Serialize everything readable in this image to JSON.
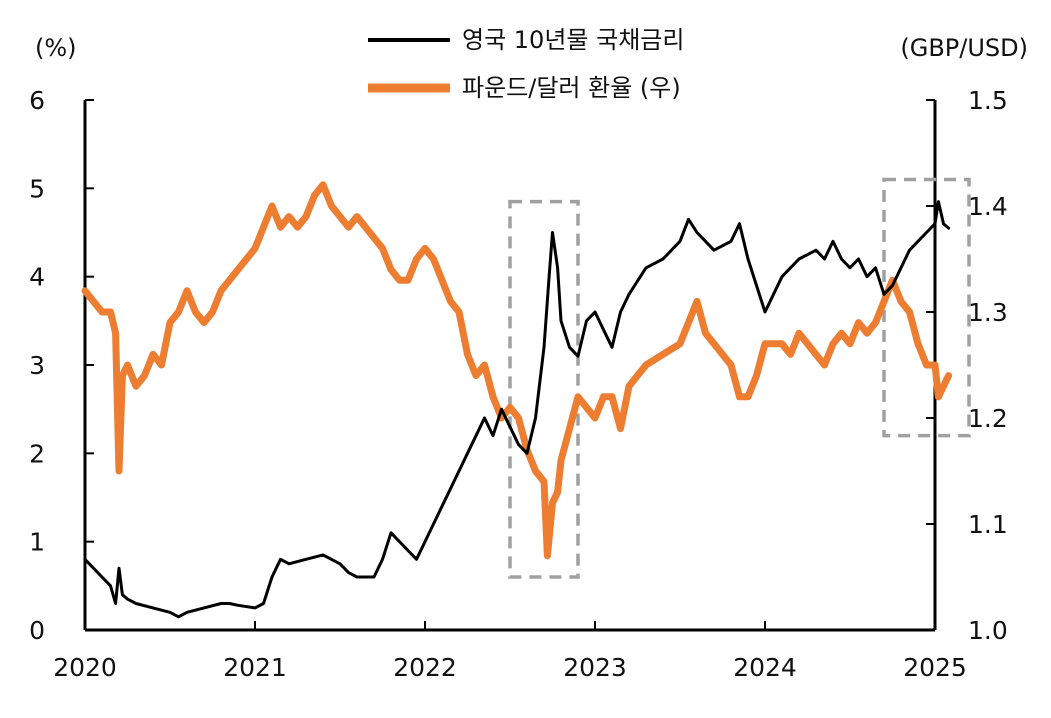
{
  "chart_data": {
    "type": "line",
    "left_unit": "(%)",
    "right_unit": "(GBP/USD)",
    "x_tick_labels": [
      "2020",
      "2021",
      "2022",
      "2023",
      "2024",
      "2025"
    ],
    "y_left": {
      "range": [
        0,
        6
      ],
      "tick_labels": [
        "0",
        "1",
        "2",
        "3",
        "4",
        "5",
        "6"
      ]
    },
    "y_right": {
      "range": [
        1.0,
        1.5
      ],
      "tick_labels": [
        "1.0",
        "1.1",
        "1.2",
        "1.3",
        "1.4",
        "1.5"
      ]
    },
    "x_range": [
      2020.0,
      2025.0
    ],
    "highlight_boxes": [
      {
        "x_range": [
          2022.5,
          2022.9
        ],
        "y_left_range": [
          0.6,
          4.85
        ]
      },
      {
        "x_range": [
          2024.7,
          2025.2
        ],
        "y_left_range": [
          2.2,
          5.1
        ]
      }
    ],
    "series": [
      {
        "name": "영국 10년물 국채금리",
        "axis": "left",
        "color": "#000000",
        "x": [
          2020.0,
          2020.05,
          2020.1,
          2020.15,
          2020.18,
          2020.2,
          2020.22,
          2020.25,
          2020.3,
          2020.4,
          2020.5,
          2020.55,
          2020.6,
          2020.7,
          2020.8,
          2020.85,
          2020.9,
          2021.0,
          2021.05,
          2021.1,
          2021.15,
          2021.2,
          2021.3,
          2021.4,
          2021.5,
          2021.55,
          2021.6,
          2021.7,
          2021.75,
          2021.8,
          2021.85,
          2021.9,
          2021.95,
          2022.0,
          2022.05,
          2022.1,
          2022.15,
          2022.2,
          2022.25,
          2022.3,
          2022.35,
          2022.4,
          2022.45,
          2022.5,
          2022.55,
          2022.6,
          2022.65,
          2022.7,
          2022.73,
          2022.75,
          2022.78,
          2022.8,
          2022.85,
          2022.9,
          2022.95,
          2023.0,
          2023.05,
          2023.1,
          2023.15,
          2023.2,
          2023.3,
          2023.4,
          2023.5,
          2023.55,
          2023.6,
          2023.65,
          2023.7,
          2023.8,
          2023.85,
          2023.9,
          2023.95,
          2024.0,
          2024.05,
          2024.1,
          2024.15,
          2024.2,
          2024.3,
          2024.35,
          2024.4,
          2024.45,
          2024.5,
          2024.55,
          2024.6,
          2024.65,
          2024.7,
          2024.75,
          2024.8,
          2024.85,
          2024.9,
          2024.95,
          2025.0,
          2025.02,
          2025.05,
          2025.08
        ],
        "values": [
          0.8,
          0.7,
          0.6,
          0.5,
          0.3,
          0.7,
          0.4,
          0.35,
          0.3,
          0.25,
          0.2,
          0.15,
          0.2,
          0.25,
          0.3,
          0.3,
          0.28,
          0.25,
          0.3,
          0.6,
          0.8,
          0.75,
          0.8,
          0.85,
          0.75,
          0.65,
          0.6,
          0.6,
          0.8,
          1.1,
          1.0,
          0.9,
          0.8,
          1.0,
          1.2,
          1.4,
          1.6,
          1.8,
          2.0,
          2.2,
          2.4,
          2.2,
          2.5,
          2.3,
          2.1,
          2.0,
          2.4,
          3.2,
          4.0,
          4.5,
          4.1,
          3.5,
          3.2,
          3.1,
          3.5,
          3.6,
          3.4,
          3.2,
          3.6,
          3.8,
          4.1,
          4.2,
          4.4,
          4.65,
          4.5,
          4.4,
          4.3,
          4.4,
          4.6,
          4.2,
          3.9,
          3.6,
          3.8,
          4.0,
          4.1,
          4.2,
          4.3,
          4.2,
          4.4,
          4.2,
          4.1,
          4.2,
          4.0,
          4.1,
          3.8,
          3.9,
          4.1,
          4.3,
          4.4,
          4.5,
          4.6,
          4.85,
          4.6,
          4.55
        ]
      },
      {
        "name": "파운드/달러 환율 (우)",
        "axis": "right",
        "color": "#ED7D31",
        "x": [
          2020.0,
          2020.05,
          2020.1,
          2020.15,
          2020.18,
          2020.2,
          2020.22,
          2020.25,
          2020.3,
          2020.35,
          2020.4,
          2020.45,
          2020.5,
          2020.55,
          2020.6,
          2020.65,
          2020.7,
          2020.75,
          2020.8,
          2020.85,
          2020.9,
          2020.95,
          2021.0,
          2021.05,
          2021.1,
          2021.15,
          2021.2,
          2021.25,
          2021.3,
          2021.35,
          2021.4,
          2021.45,
          2021.5,
          2021.55,
          2021.6,
          2021.65,
          2021.7,
          2021.75,
          2021.8,
          2021.85,
          2021.9,
          2021.95,
          2022.0,
          2022.05,
          2022.1,
          2022.15,
          2022.2,
          2022.25,
          2022.3,
          2022.35,
          2022.4,
          2022.45,
          2022.5,
          2022.55,
          2022.6,
          2022.65,
          2022.7,
          2022.72,
          2022.75,
          2022.78,
          2022.8,
          2022.85,
          2022.9,
          2022.95,
          2023.0,
          2023.05,
          2023.1,
          2023.15,
          2023.2,
          2023.3,
          2023.4,
          2023.5,
          2023.55,
          2023.6,
          2023.65,
          2023.7,
          2023.75,
          2023.8,
          2023.85,
          2023.9,
          2023.95,
          2024.0,
          2024.05,
          2024.1,
          2024.15,
          2024.2,
          2024.3,
          2024.35,
          2024.4,
          2024.45,
          2024.5,
          2024.55,
          2024.6,
          2024.65,
          2024.7,
          2024.75,
          2024.8,
          2024.85,
          2024.9,
          2024.95,
          2025.0,
          2025.02,
          2025.05,
          2025.08
        ],
        "values": [
          1.32,
          1.31,
          1.3,
          1.3,
          1.28,
          1.15,
          1.24,
          1.25,
          1.23,
          1.24,
          1.26,
          1.25,
          1.29,
          1.3,
          1.32,
          1.3,
          1.29,
          1.3,
          1.32,
          1.33,
          1.34,
          1.35,
          1.36,
          1.38,
          1.4,
          1.38,
          1.39,
          1.38,
          1.39,
          1.41,
          1.42,
          1.4,
          1.39,
          1.38,
          1.39,
          1.38,
          1.37,
          1.36,
          1.34,
          1.33,
          1.33,
          1.35,
          1.36,
          1.35,
          1.33,
          1.31,
          1.3,
          1.26,
          1.24,
          1.25,
          1.22,
          1.2,
          1.21,
          1.2,
          1.17,
          1.15,
          1.14,
          1.07,
          1.12,
          1.13,
          1.16,
          1.19,
          1.22,
          1.21,
          1.2,
          1.22,
          1.22,
          1.19,
          1.23,
          1.25,
          1.26,
          1.27,
          1.29,
          1.31,
          1.28,
          1.27,
          1.26,
          1.25,
          1.22,
          1.22,
          1.24,
          1.27,
          1.27,
          1.27,
          1.26,
          1.28,
          1.26,
          1.25,
          1.27,
          1.28,
          1.27,
          1.29,
          1.28,
          1.29,
          1.31,
          1.33,
          1.31,
          1.3,
          1.27,
          1.25,
          1.25,
          1.22,
          1.23,
          1.24
        ]
      }
    ]
  }
}
